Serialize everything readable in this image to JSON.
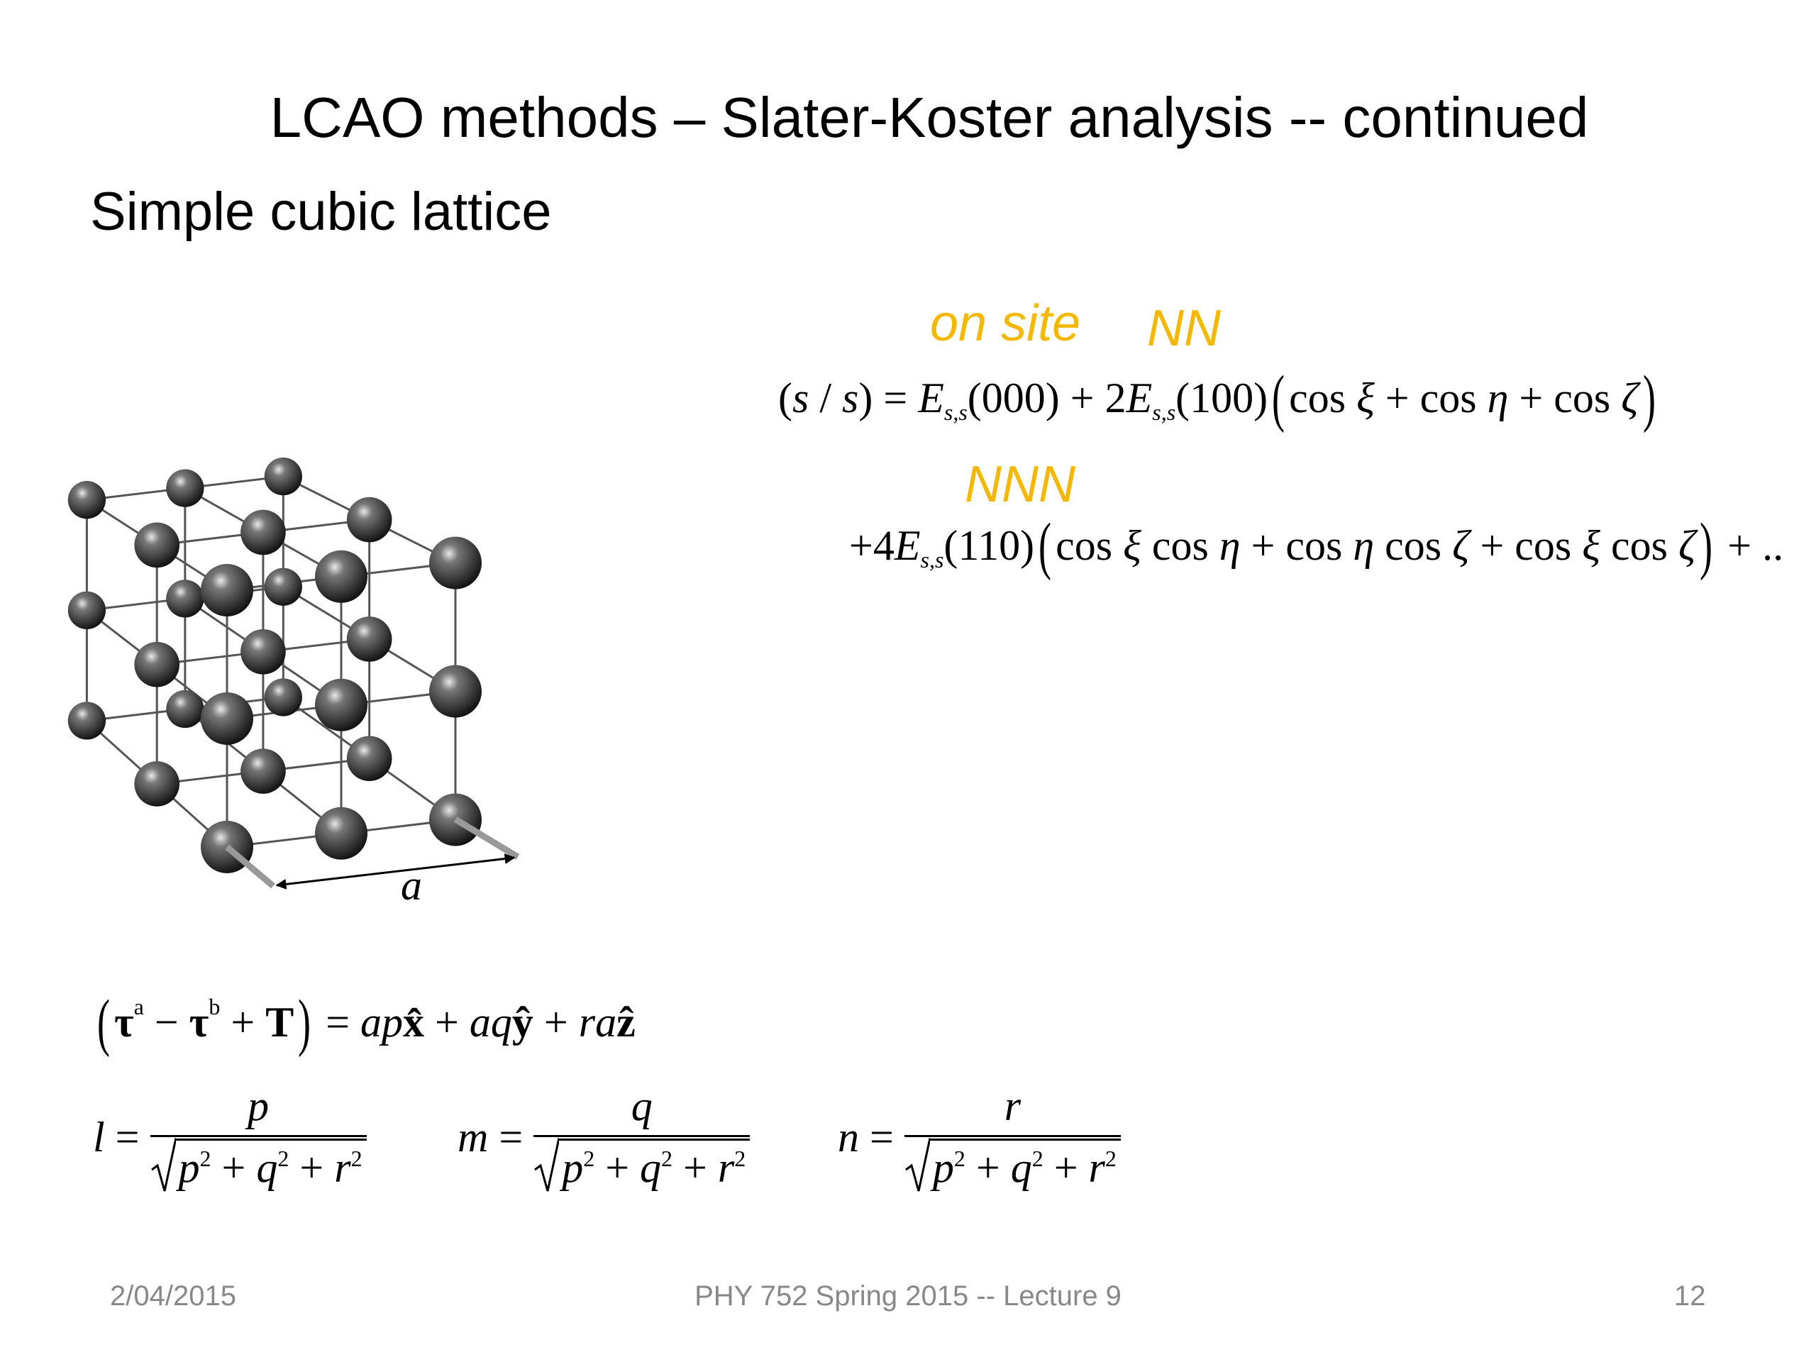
{
  "title": "LCAO methods – Slater-Koster analysis -- continued",
  "subtitle": "Simple cubic lattice",
  "figure": {
    "label": "a"
  },
  "labels": {
    "on_site": "on site",
    "nn": "NN",
    "nnn": "NNN"
  },
  "equations": [
    {
      "parts": [
        {
          "t": "("
        },
        {
          "t": "s",
          "s": "i"
        },
        {
          "t": " / "
        },
        {
          "t": "s",
          "s": "i"
        },
        {
          "t": ") = "
        },
        {
          "t": "E",
          "s": "i"
        },
        {
          "t": "s,s",
          "s": "sub"
        },
        {
          "t": "(000) + 2"
        },
        {
          "t": "E",
          "s": "i"
        },
        {
          "t": "s,s",
          "s": "sub"
        },
        {
          "t": "(100)"
        },
        {
          "t": "(",
          "s": "big"
        },
        {
          "t": "cos "
        },
        {
          "t": "ξ",
          "s": "i"
        },
        {
          "t": " + cos "
        },
        {
          "t": "η",
          "s": "i"
        },
        {
          "t": " + cos "
        },
        {
          "t": "ζ",
          "s": "i"
        },
        {
          "t": ")",
          "s": "big"
        }
      ]
    },
    {
      "parts": [
        {
          "t": "+4"
        },
        {
          "t": "E",
          "s": "i"
        },
        {
          "t": "s,s",
          "s": "sub"
        },
        {
          "t": "(110)"
        },
        {
          "t": "(",
          "s": "big"
        },
        {
          "t": "cos "
        },
        {
          "t": "ξ",
          "s": "i"
        },
        {
          "t": " cos "
        },
        {
          "t": "η",
          "s": "i"
        },
        {
          "t": " + cos "
        },
        {
          "t": "η",
          "s": "i"
        },
        {
          "t": " cos "
        },
        {
          "t": "ζ",
          "s": "i"
        },
        {
          "t": " + cos "
        },
        {
          "t": "ξ",
          "s": "i"
        },
        {
          "t": " cos "
        },
        {
          "t": "ζ",
          "s": "i"
        },
        {
          "t": ")",
          "s": "big"
        },
        {
          "t": " + .."
        }
      ]
    },
    {
      "parts": [
        {
          "t": "(",
          "s": "big"
        },
        {
          "t": "τ",
          "s": "b"
        },
        {
          "t": "a",
          "s": "sup"
        },
        {
          "t": " − "
        },
        {
          "t": "τ",
          "s": "b"
        },
        {
          "t": "b",
          "s": "sup"
        },
        {
          "t": " + "
        },
        {
          "t": "T",
          "s": "b"
        },
        {
          "t": ")",
          "s": "big"
        },
        {
          "t": " = "
        },
        {
          "t": "ap",
          "s": "i"
        },
        {
          "t": "x̂",
          "s": "b"
        },
        {
          "t": " + "
        },
        {
          "t": "aq",
          "s": "i"
        },
        {
          "t": "ŷ",
          "s": "b"
        },
        {
          "t": " + "
        },
        {
          "t": "ra",
          "s": "i"
        },
        {
          "t": "ẑ",
          "s": "b"
        }
      ]
    }
  ],
  "fractions": [
    {
      "lhs": [
        {
          "t": "l",
          "s": "i"
        },
        {
          "t": " = "
        }
      ],
      "num": [
        {
          "t": "p",
          "s": "i"
        }
      ],
      "den": [
        {
          "t": "p",
          "s": "i"
        },
        {
          "t": "2",
          "s": "sup"
        },
        {
          "t": " + "
        },
        {
          "t": "q",
          "s": "i"
        },
        {
          "t": "2",
          "s": "sup"
        },
        {
          "t": " + "
        },
        {
          "t": "r",
          "s": "i"
        },
        {
          "t": "2",
          "s": "sup"
        }
      ]
    },
    {
      "lhs": [
        {
          "t": "m",
          "s": "i"
        },
        {
          "t": " = "
        }
      ],
      "num": [
        {
          "t": "q",
          "s": "i"
        }
      ],
      "den": [
        {
          "t": "p",
          "s": "i"
        },
        {
          "t": "2",
          "s": "sup"
        },
        {
          "t": " + "
        },
        {
          "t": "q",
          "s": "i"
        },
        {
          "t": "2",
          "s": "sup"
        },
        {
          "t": " + "
        },
        {
          "t": "r",
          "s": "i"
        },
        {
          "t": "2",
          "s": "sup"
        }
      ]
    },
    {
      "lhs": [
        {
          "t": "n",
          "s": "i"
        },
        {
          "t": " = "
        }
      ],
      "num": [
        {
          "t": "r",
          "s": "i"
        }
      ],
      "den": [
        {
          "t": "p",
          "s": "i"
        },
        {
          "t": "2",
          "s": "sup"
        },
        {
          "t": " + "
        },
        {
          "t": "q",
          "s": "i"
        },
        {
          "t": "2",
          "s": "sup"
        },
        {
          "t": " + "
        },
        {
          "t": "r",
          "s": "i"
        },
        {
          "t": "2",
          "s": "sup"
        }
      ]
    }
  ],
  "footer": {
    "date": "2/04/2015",
    "course": "PHY 752  Spring 2015 -- Lecture 9",
    "page": "12"
  }
}
